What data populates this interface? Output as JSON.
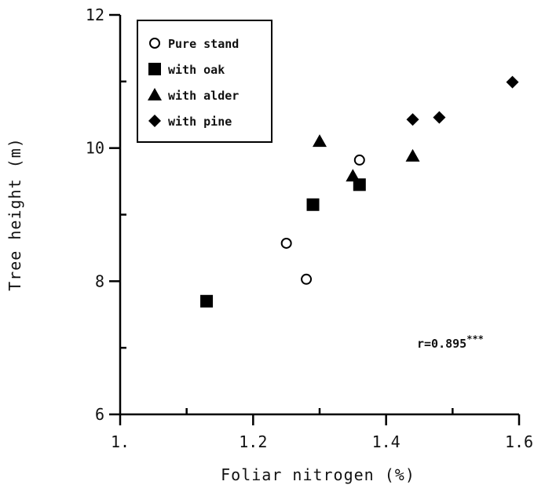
{
  "chart_data": {
    "type": "scatter",
    "title": "",
    "xlabel": "Foliar nitrogen (%)",
    "ylabel": "Tree height (m)",
    "xlim": [
      1.0,
      1.6
    ],
    "ylim": [
      6,
      12
    ],
    "x_ticks": [
      1.0,
      1.2,
      1.4,
      1.6
    ],
    "x_tick_labels": [
      "1.",
      "1.2",
      "1.4",
      "1.6"
    ],
    "y_ticks": [
      6,
      8,
      10,
      12
    ],
    "y_tick_labels": [
      "6",
      "8",
      "10",
      "12"
    ],
    "grid": false,
    "legend_position": "top-left",
    "annotation": {
      "text": "r=0.895",
      "superscript": "***"
    },
    "series": [
      {
        "name": "Pure stand",
        "marker": "open-circle",
        "points": [
          [
            1.25,
            8.57
          ],
          [
            1.28,
            8.03
          ],
          [
            1.36,
            9.82
          ]
        ]
      },
      {
        "name": "with oak",
        "marker": "square",
        "points": [
          [
            1.13,
            7.7
          ],
          [
            1.29,
            9.15
          ],
          [
            1.36,
            9.45
          ]
        ]
      },
      {
        "name": "with alder",
        "marker": "triangle",
        "points": [
          [
            1.3,
            10.1
          ],
          [
            1.35,
            9.58
          ],
          [
            1.44,
            9.88
          ]
        ]
      },
      {
        "name": "with pine",
        "marker": "diamond",
        "points": [
          [
            1.44,
            10.43
          ],
          [
            1.48,
            10.46
          ],
          [
            1.59,
            10.99
          ]
        ]
      }
    ]
  }
}
